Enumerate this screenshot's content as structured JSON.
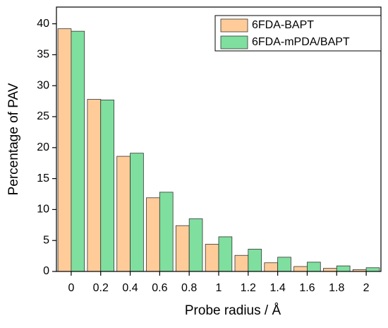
{
  "chart_data": {
    "type": "bar",
    "categories": [
      "0",
      "0.2",
      "0.4",
      "0.6",
      "0.8",
      "1",
      "1.2",
      "1.4",
      "1.6",
      "1.8",
      "2"
    ],
    "series": [
      {
        "name": "6FDA-BAPT",
        "color": "#ffcc99",
        "values": [
          39.2,
          27.8,
          18.6,
          11.9,
          7.4,
          4.4,
          2.6,
          1.4,
          0.8,
          0.5,
          0.3
        ]
      },
      {
        "name": "6FDA-mPDA/BAPT",
        "color": "#7fdf9f",
        "values": [
          38.8,
          27.7,
          19.1,
          12.8,
          8.5,
          5.6,
          3.6,
          2.3,
          1.5,
          0.9,
          0.6
        ]
      }
    ],
    "x_label": "Probe radius / Å",
    "y_label": "Percentage of PAV",
    "ylim": [
      0,
      42.7
    ],
    "yticks": [
      0,
      5,
      10,
      15,
      20,
      25,
      30,
      35,
      40
    ],
    "legend": "top-right"
  }
}
